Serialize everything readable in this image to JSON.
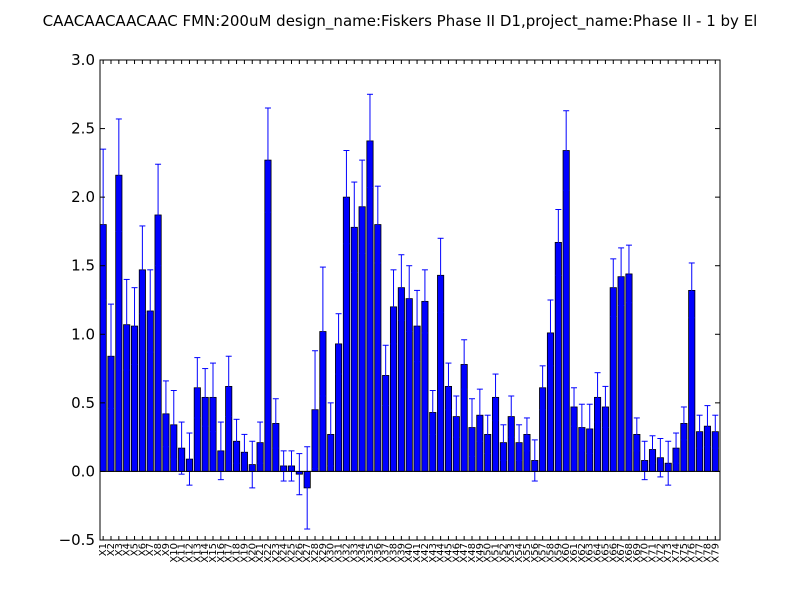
{
  "chart_data": {
    "type": "bar",
    "title": "CAACAACAACAAC  FMN:200uM  design_name:Fiskers Phase II D1,project_name:Phase II - 1 by El",
    "xlabel": "",
    "ylabel": "",
    "ylim": [
      -0.5,
      3.0
    ],
    "yticks": [
      "−0.5",
      "0.0",
      "0.5",
      "1.0",
      "1.5",
      "2.0",
      "2.5",
      "3.0"
    ],
    "yticks_values": [
      -0.5,
      0.0,
      0.5,
      1.0,
      1.5,
      2.0,
      2.5,
      3.0
    ],
    "grid": false,
    "bar_color": "#0000ff",
    "error_color": "#0000ff",
    "categories": [
      "X1",
      "X2",
      "X3",
      "X4",
      "X5",
      "X6",
      "X7",
      "X8",
      "X9",
      "X10",
      "X11",
      "X12",
      "X13",
      "X14",
      "X15",
      "X16",
      "X17",
      "X18",
      "X19",
      "X20",
      "X21",
      "X22",
      "X23",
      "X24",
      "X25",
      "X26",
      "X27",
      "X28",
      "X29",
      "X30",
      "X31",
      "X32",
      "X33",
      "X34",
      "X35",
      "X36",
      "X37",
      "X38",
      "X39",
      "X40",
      "X41",
      "X42",
      "X43",
      "X44",
      "X45",
      "X46",
      "X47",
      "X48",
      "X49",
      "X50",
      "X51",
      "X52",
      "X53",
      "X54",
      "X55",
      "X56",
      "X57",
      "X58",
      "X59",
      "X60",
      "X61",
      "X62",
      "X63",
      "X64",
      "X65",
      "X66",
      "X67",
      "X68",
      "X69",
      "X70",
      "X71",
      "X72",
      "X73",
      "X74",
      "X75",
      "X76",
      "X77",
      "X78",
      "X79"
    ],
    "values": [
      1.8,
      0.84,
      2.16,
      1.07,
      1.06,
      1.47,
      1.17,
      1.87,
      0.42,
      0.34,
      0.17,
      0.09,
      0.61,
      0.54,
      0.54,
      0.15,
      0.62,
      0.22,
      0.14,
      0.05,
      0.21,
      2.27,
      0.35,
      0.04,
      0.04,
      -0.02,
      -0.12,
      0.45,
      1.02,
      0.27,
      0.93,
      2.0,
      1.78,
      1.93,
      2.41,
      1.8,
      0.7,
      1.2,
      1.34,
      1.26,
      1.06,
      1.24,
      0.43,
      1.43,
      0.62,
      0.4,
      0.78,
      0.32,
      0.41,
      0.27,
      0.54,
      0.21,
      0.4,
      0.21,
      0.27,
      0.08,
      0.61,
      1.01,
      1.67,
      2.34,
      0.47,
      0.32,
      0.31,
      0.54,
      0.47,
      1.34,
      1.42,
      1.44,
      0.27,
      0.08,
      0.16,
      0.1,
      0.06,
      0.17,
      0.35,
      1.32,
      0.29,
      0.33,
      0.29
    ],
    "errors": [
      0.55,
      0.38,
      0.41,
      0.33,
      0.28,
      0.32,
      0.3,
      0.37,
      0.24,
      0.25,
      0.19,
      0.19,
      0.22,
      0.21,
      0.25,
      0.21,
      0.22,
      0.16,
      0.13,
      0.17,
      0.15,
      0.38,
      0.18,
      0.11,
      0.11,
      0.15,
      0.3,
      0.43,
      0.47,
      0.23,
      0.22,
      0.34,
      0.33,
      0.34,
      0.34,
      0.28,
      0.22,
      0.27,
      0.24,
      0.24,
      0.26,
      0.23,
      0.16,
      0.27,
      0.17,
      0.15,
      0.18,
      0.21,
      0.19,
      0.14,
      0.17,
      0.13,
      0.15,
      0.13,
      0.12,
      0.15,
      0.16,
      0.24,
      0.24,
      0.29,
      0.14,
      0.17,
      0.18,
      0.18,
      0.15,
      0.21,
      0.21,
      0.21,
      0.12,
      0.14,
      0.1,
      0.14,
      0.16,
      0.11,
      0.12,
      0.2,
      0.12,
      0.15,
      0.12
    ]
  }
}
